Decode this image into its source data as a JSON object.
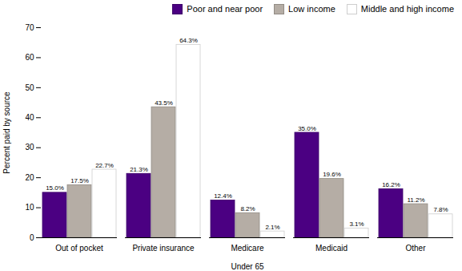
{
  "chart_data": {
    "type": "bar",
    "categories": [
      "Out of pocket",
      "Private insurance",
      "Medicare",
      "Medicaid",
      "Other"
    ],
    "series": [
      {
        "name": "Poor and near poor",
        "color": "#4B0082",
        "values": [
          15.0,
          21.3,
          12.4,
          35.0,
          16.2
        ],
        "value_labels": [
          "15.0%",
          "21.3%",
          "12.4%",
          "35.0%",
          "16.2%"
        ]
      },
      {
        "name": "Low income",
        "color": "#B5ADA5",
        "values": [
          17.5,
          43.5,
          8.2,
          19.6,
          11.2
        ],
        "value_labels": [
          "17.5%",
          "43.5%",
          "8.2%",
          "19.6%",
          "11.2%"
        ]
      },
      {
        "name": "Middle and high income",
        "color": "#FFFFFF",
        "values": [
          22.7,
          64.3,
          2.1,
          3.1,
          7.8
        ],
        "value_labels": [
          "22.7%",
          "64.3%",
          "2.1%",
          "3.1%",
          "7.8%"
        ]
      }
    ],
    "xlabel": "Under 65",
    "ylabel": "Percent paid by source",
    "ylim": [
      0,
      70
    ],
    "yticks": [
      0,
      10,
      20,
      30,
      40,
      50,
      60,
      70
    ],
    "grid": false,
    "legend": "upper right",
    "data_labels": true
  }
}
